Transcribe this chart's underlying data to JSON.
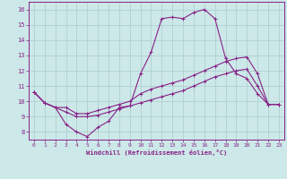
{
  "xlabel": "Windchill (Refroidissement éolien,°C)",
  "ylabel": "",
  "bg_color": "#cce8e8",
  "line_color": "#882288",
  "grid_color": "#aacccc",
  "xlim": [
    -0.5,
    23.5
  ],
  "ylim": [
    7.5,
    16.5
  ],
  "xticks": [
    0,
    1,
    2,
    3,
    4,
    5,
    6,
    7,
    8,
    9,
    10,
    11,
    12,
    13,
    14,
    15,
    16,
    17,
    18,
    19,
    20,
    21,
    22,
    23
  ],
  "yticks": [
    8,
    9,
    10,
    11,
    12,
    13,
    14,
    15,
    16
  ],
  "line1_x": [
    0,
    1,
    2,
    3,
    4,
    5,
    6,
    7,
    8,
    9,
    10,
    11,
    12,
    13,
    14,
    15,
    16,
    17,
    18,
    19,
    20,
    21,
    22,
    23
  ],
  "line1_y": [
    10.6,
    9.9,
    9.6,
    8.5,
    8.0,
    7.7,
    8.3,
    8.7,
    9.6,
    9.7,
    11.8,
    13.2,
    15.4,
    15.5,
    15.4,
    15.8,
    16.0,
    15.4,
    12.8,
    11.8,
    11.5,
    10.5,
    9.8,
    9.8
  ],
  "line2_x": [
    0,
    1,
    2,
    3,
    4,
    5,
    6,
    7,
    8,
    9,
    10,
    11,
    12,
    13,
    14,
    15,
    16,
    17,
    18,
    19,
    20,
    21,
    22,
    23
  ],
  "line2_y": [
    10.6,
    9.9,
    9.6,
    9.6,
    9.2,
    9.2,
    9.4,
    9.6,
    9.8,
    10.0,
    10.5,
    10.8,
    11.0,
    11.2,
    11.4,
    11.7,
    12.0,
    12.3,
    12.6,
    12.8,
    12.9,
    11.8,
    9.8,
    9.8
  ],
  "line3_x": [
    0,
    1,
    2,
    3,
    4,
    5,
    6,
    7,
    8,
    9,
    10,
    11,
    12,
    13,
    14,
    15,
    16,
    17,
    18,
    19,
    20,
    21,
    22,
    23
  ],
  "line3_y": [
    10.6,
    9.9,
    9.6,
    9.3,
    9.0,
    9.0,
    9.1,
    9.3,
    9.5,
    9.7,
    9.9,
    10.1,
    10.3,
    10.5,
    10.7,
    11.0,
    11.3,
    11.6,
    11.8,
    12.0,
    12.1,
    11.0,
    9.8,
    9.8
  ],
  "xlabel_fontsize": 5.0,
  "tick_fontsize": 4.5,
  "marker_size": 3.0,
  "line_width": 0.8
}
